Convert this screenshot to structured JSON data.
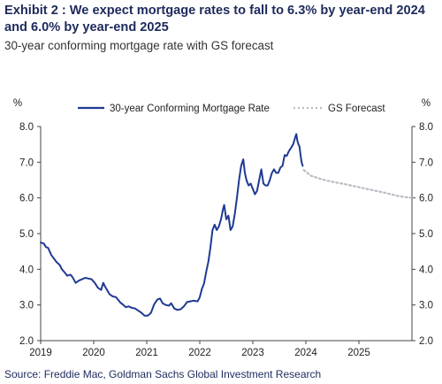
{
  "header": {
    "title": "Exhibit 2 : We expect mortgage rates to fall to 6.3% by year-end 2024 and 6.0% by year-end 2025",
    "subtitle": "30-year conforming mortgage rate with GS forecast"
  },
  "footer": {
    "source": "Source: Freddie Mac, Goldman Sachs Global Investment Research"
  },
  "colors": {
    "actual": "#1f3a93",
    "forecast": "#b8bcc4",
    "title": "#1d2a5c",
    "axis": "#444444"
  },
  "chart_data": {
    "type": "line",
    "ylim": [
      2.0,
      8.0
    ],
    "xlim": [
      2019.0,
      2026.0
    ],
    "yticks": [
      "2.0",
      "3.0",
      "4.0",
      "5.0",
      "6.0",
      "7.0",
      "8.0"
    ],
    "yunit_left": "%",
    "yunit_right": "%",
    "xticks": [
      {
        "x": 2019,
        "label": "2019"
      },
      {
        "x": 2020,
        "label": "2020"
      },
      {
        "x": 2021,
        "label": "2021"
      },
      {
        "x": 2022,
        "label": "2022"
      },
      {
        "x": 2023,
        "label": "2023"
      },
      {
        "x": 2024,
        "label": "2024"
      },
      {
        "x": 2025,
        "label": "2025"
      }
    ],
    "legend_position": "top",
    "series": [
      {
        "name": "30-year Conforming Mortgage Rate",
        "style": "solid",
        "points": [
          [
            2019.0,
            4.75
          ],
          [
            2019.06,
            4.72
          ],
          [
            2019.1,
            4.62
          ],
          [
            2019.14,
            4.6
          ],
          [
            2019.2,
            4.4
          ],
          [
            2019.25,
            4.3
          ],
          [
            2019.3,
            4.2
          ],
          [
            2019.36,
            4.12
          ],
          [
            2019.4,
            4.0
          ],
          [
            2019.46,
            3.9
          ],
          [
            2019.5,
            3.82
          ],
          [
            2019.56,
            3.85
          ],
          [
            2019.6,
            3.78
          ],
          [
            2019.66,
            3.62
          ],
          [
            2019.72,
            3.68
          ],
          [
            2019.78,
            3.72
          ],
          [
            2019.84,
            3.76
          ],
          [
            2019.9,
            3.74
          ],
          [
            2019.96,
            3.72
          ],
          [
            2020.02,
            3.62
          ],
          [
            2020.08,
            3.48
          ],
          [
            2020.14,
            3.42
          ],
          [
            2020.18,
            3.62
          ],
          [
            2020.22,
            3.5
          ],
          [
            2020.3,
            3.3
          ],
          [
            2020.36,
            3.24
          ],
          [
            2020.42,
            3.22
          ],
          [
            2020.5,
            3.07
          ],
          [
            2020.56,
            3.0
          ],
          [
            2020.6,
            2.94
          ],
          [
            2020.66,
            2.96
          ],
          [
            2020.72,
            2.92
          ],
          [
            2020.78,
            2.9
          ],
          [
            2020.84,
            2.84
          ],
          [
            2020.9,
            2.78
          ],
          [
            2020.96,
            2.7
          ],
          [
            2021.02,
            2.7
          ],
          [
            2021.08,
            2.78
          ],
          [
            2021.14,
            3.02
          ],
          [
            2021.2,
            3.15
          ],
          [
            2021.25,
            3.18
          ],
          [
            2021.3,
            3.05
          ],
          [
            2021.36,
            3.0
          ],
          [
            2021.42,
            2.98
          ],
          [
            2021.46,
            3.05
          ],
          [
            2021.52,
            2.9
          ],
          [
            2021.58,
            2.86
          ],
          [
            2021.64,
            2.88
          ],
          [
            2021.7,
            2.96
          ],
          [
            2021.76,
            3.08
          ],
          [
            2021.82,
            3.1
          ],
          [
            2021.88,
            3.12
          ],
          [
            2021.96,
            3.1
          ],
          [
            2022.0,
            3.22
          ],
          [
            2022.04,
            3.45
          ],
          [
            2022.08,
            3.6
          ],
          [
            2022.12,
            3.92
          ],
          [
            2022.16,
            4.2
          ],
          [
            2022.2,
            4.6
          ],
          [
            2022.24,
            5.1
          ],
          [
            2022.28,
            5.25
          ],
          [
            2022.32,
            5.1
          ],
          [
            2022.36,
            5.2
          ],
          [
            2022.4,
            5.4
          ],
          [
            2022.44,
            5.7
          ],
          [
            2022.46,
            5.8
          ],
          [
            2022.5,
            5.4
          ],
          [
            2022.54,
            5.5
          ],
          [
            2022.58,
            5.1
          ],
          [
            2022.62,
            5.2
          ],
          [
            2022.66,
            5.55
          ],
          [
            2022.7,
            6.0
          ],
          [
            2022.74,
            6.5
          ],
          [
            2022.78,
            6.9
          ],
          [
            2022.82,
            7.08
          ],
          [
            2022.85,
            6.7
          ],
          [
            2022.88,
            6.5
          ],
          [
            2022.92,
            6.35
          ],
          [
            2022.96,
            6.4
          ],
          [
            2023.0,
            6.25
          ],
          [
            2023.04,
            6.1
          ],
          [
            2023.08,
            6.2
          ],
          [
            2023.12,
            6.5
          ],
          [
            2023.16,
            6.8
          ],
          [
            2023.2,
            6.4
          ],
          [
            2023.24,
            6.35
          ],
          [
            2023.28,
            6.35
          ],
          [
            2023.32,
            6.5
          ],
          [
            2023.36,
            6.7
          ],
          [
            2023.4,
            6.8
          ],
          [
            2023.44,
            6.7
          ],
          [
            2023.48,
            6.7
          ],
          [
            2023.52,
            6.85
          ],
          [
            2023.56,
            6.9
          ],
          [
            2023.6,
            7.2
          ],
          [
            2023.64,
            7.18
          ],
          [
            2023.68,
            7.31
          ],
          [
            2023.72,
            7.4
          ],
          [
            2023.76,
            7.5
          ],
          [
            2023.8,
            7.7
          ],
          [
            2023.82,
            7.79
          ],
          [
            2023.84,
            7.6
          ],
          [
            2023.86,
            7.5
          ],
          [
            2023.88,
            7.44
          ],
          [
            2023.9,
            7.2
          ],
          [
            2023.92,
            7.0
          ],
          [
            2023.94,
            6.9
          ]
        ]
      },
      {
        "name": "GS Forecast",
        "style": "dotted",
        "points": [
          [
            2023.96,
            6.78
          ],
          [
            2024.1,
            6.62
          ],
          [
            2024.3,
            6.52
          ],
          [
            2024.5,
            6.45
          ],
          [
            2024.75,
            6.38
          ],
          [
            2025.0,
            6.3
          ],
          [
            2025.25,
            6.22
          ],
          [
            2025.5,
            6.14
          ],
          [
            2025.75,
            6.05
          ],
          [
            2026.0,
            6.0
          ]
        ]
      }
    ]
  }
}
